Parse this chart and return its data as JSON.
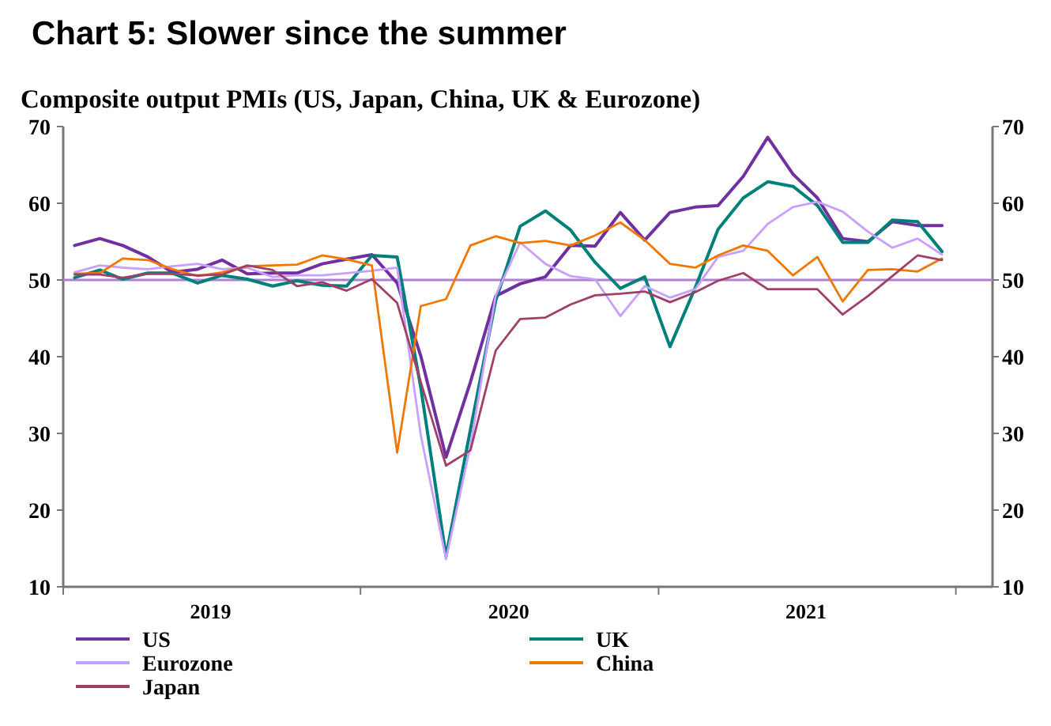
{
  "chart_data": {
    "type": "line",
    "title": "Chart 5: Slower since the summer",
    "subtitle": "Composite output PMIs (US, Japan, China, UK & Eurozone)",
    "x": [
      "2019-01-15",
      "2019-02-15",
      "2019-03-15",
      "2019-04-15",
      "2019-05-15",
      "2019-06-15",
      "2019-07-15",
      "2019-08-15",
      "2019-09-15",
      "2019-10-15",
      "2019-11-15",
      "2019-12-15",
      "2020-01-15",
      "2020-02-15",
      "2020-03-15",
      "2020-04-15",
      "2020-05-15",
      "2020-06-15",
      "2020-07-15",
      "2020-08-15",
      "2020-09-15",
      "2020-10-15",
      "2020-11-15",
      "2020-12-15",
      "2021-01-15",
      "2021-02-15",
      "2021-03-15",
      "2021-04-15",
      "2021-05-15",
      "2021-06-15",
      "2021-07-15",
      "2021-08-15",
      "2021-09-15",
      "2021-10-15",
      "2021-11-15",
      "2021-12-15"
    ],
    "xlim": [
      "2019-01-01",
      "2022-02-15"
    ],
    "xticks": [
      {
        "value": "2019-01-01",
        "label": null
      },
      {
        "value": "2019-07-01",
        "label": "2019"
      },
      {
        "value": "2020-01-01",
        "label": null
      },
      {
        "value": "2020-07-01",
        "label": "2020"
      },
      {
        "value": "2021-01-01",
        "label": null
      },
      {
        "value": "2021-07-01",
        "label": "2021"
      },
      {
        "value": "2022-01-01",
        "label": null
      }
    ],
    "ylim": [
      10,
      70
    ],
    "yticks": [
      10,
      20,
      30,
      40,
      50,
      60,
      70
    ],
    "y2lim": [
      10,
      70
    ],
    "y2ticks": [
      10,
      20,
      30,
      40,
      50,
      60,
      70
    ],
    "grid": false,
    "legend": "bottom",
    "marker": "none",
    "line_style": "solid",
    "ref_lines": [
      {
        "axis": "y",
        "value": 50,
        "color": "#b07fd0"
      }
    ],
    "series": [
      {
        "name": "US",
        "color": "#7030a0",
        "values": [
          54.5,
          55.4,
          54.5,
          53,
          51,
          51.4,
          52.6,
          50.8,
          50.9,
          50.9,
          52.1,
          52.7,
          53.3,
          49.6,
          40.1,
          26.9,
          36.7,
          47.9,
          49.5,
          50.4,
          54.5,
          54.4,
          58.8,
          55.2,
          58.8,
          59.5,
          59.7,
          63.5,
          68.6,
          63.8,
          60.7,
          55.4,
          55,
          57.6,
          57.1,
          57.1
        ]
      },
      {
        "name": "UK",
        "color": "#00807a",
        "values": [
          50.3,
          51.3,
          50.1,
          50.9,
          50.9,
          49.6,
          50.6,
          50.1,
          49.2,
          49.9,
          49.3,
          49.2,
          53.2,
          53,
          36,
          14,
          30.5,
          47.3,
          57,
          59,
          56.5,
          52.3,
          48.9,
          50.4,
          41.3,
          49,
          56.6,
          60.7,
          62.8,
          62.2,
          59.7,
          54.9,
          54.9,
          57.8,
          57.6,
          53.7
        ]
      },
      {
        "name": "Eurozone",
        "color": "#c9a0ff",
        "values": [
          51,
          51.9,
          51.6,
          51.4,
          51.8,
          52.1,
          51.4,
          51.6,
          50.4,
          50.6,
          50.6,
          50.9,
          51.2,
          51.6,
          29.8,
          13.6,
          28.4,
          48,
          54.9,
          52.1,
          50.5,
          50.1,
          45.3,
          49.2,
          47.7,
          48.8,
          53,
          53.8,
          57.3,
          59.5,
          60.2,
          58.9,
          56.3,
          54.2,
          55.4,
          53.3
        ]
      },
      {
        "name": "China",
        "color": "#f07800",
        "values": [
          50.8,
          50.9,
          52.8,
          52.6,
          51.4,
          50.5,
          51,
          51.8,
          51.9,
          52,
          53.2,
          52.7,
          51.9,
          27.5,
          46.6,
          47.5,
          54.5,
          55.7,
          54.8,
          55.1,
          54.5,
          55.8,
          57.5,
          55.2,
          52.1,
          51.6,
          53.2,
          54.5,
          53.8,
          50.6,
          53,
          47.2,
          51.3,
          51.4,
          51.1,
          52.8
        ]
      },
      {
        "name": "Japan",
        "color": "#a0406a",
        "values": [
          50.7,
          50.7,
          50.3,
          50.8,
          50.8,
          50.6,
          50.7,
          51.9,
          51.3,
          49.2,
          49.7,
          48.6,
          50.1,
          47,
          36.7,
          25.8,
          27.8,
          40.8,
          44.9,
          45.1,
          46.8,
          48,
          48.2,
          48.5,
          47.1,
          48.4,
          49.9,
          50.9,
          48.8,
          48.8,
          48.8,
          45.5,
          47.9,
          50.5,
          53.2,
          52.6
        ]
      }
    ]
  }
}
